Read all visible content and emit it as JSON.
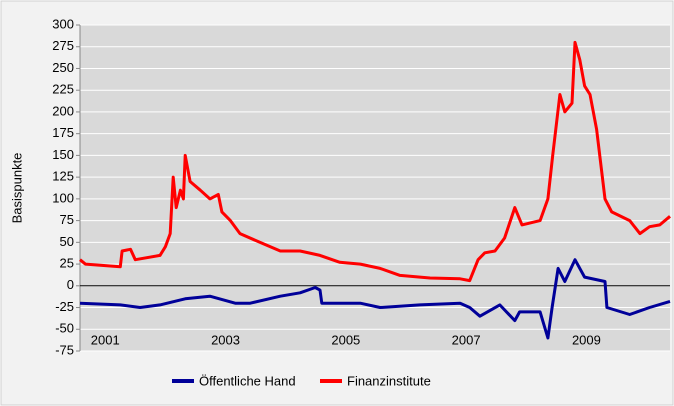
{
  "chart_data": {
    "type": "line",
    "y_label": "Basispunkte",
    "xlim": [
      2000.58,
      2010.39
    ],
    "xticks": [
      2001,
      2003,
      2005,
      2007,
      2009
    ],
    "ylim": [
      -75,
      300
    ],
    "yticks": [
      -75,
      -50,
      -25,
      0,
      25,
      50,
      75,
      100,
      125,
      150,
      175,
      200,
      225,
      250,
      275,
      300
    ],
    "grid": true,
    "legend": "bottom",
    "series": [
      {
        "name": "Öffentliche Hand",
        "color": "#000099",
        "x": [
          2000.58,
          2001.25,
          2001.58,
          2001.91,
          2002.33,
          2002.74,
          2003.16,
          2003.41,
          2003.91,
          2004.24,
          2004.49,
          2004.57,
          2004.6,
          2005.24,
          2005.57,
          2006.23,
          2006.9,
          2007.06,
          2007.23,
          2007.56,
          2007.81,
          2007.89,
          2008.23,
          2008.36,
          2008.43,
          2008.53,
          2008.64,
          2008.81,
          2008.97,
          2009.31,
          2009.34,
          2009.72,
          2010.05,
          2010.39
        ],
        "values": [
          -20,
          -22,
          -25,
          -22,
          -15,
          -12,
          -20,
          -20,
          -12,
          -8,
          -2,
          -5,
          -20,
          -20,
          -25,
          -22,
          -20,
          -25,
          -35,
          -22,
          -40,
          -30,
          -30,
          -60,
          -25,
          20,
          5,
          30,
          10,
          5,
          -25,
          -33,
          -25,
          -18
        ]
      },
      {
        "name": "Finanzinstitute",
        "color": "#ff0000",
        "x": [
          2000.58,
          2000.67,
          2001.25,
          2001.28,
          2001.42,
          2001.5,
          2001.91,
          2002.0,
          2002.08,
          2002.13,
          2002.18,
          2002.25,
          2002.3,
          2002.33,
          2002.41,
          2002.58,
          2002.74,
          2002.88,
          2002.94,
          2003.08,
          2003.24,
          2003.57,
          2003.91,
          2004.24,
          2004.57,
          2004.9,
          2005.24,
          2005.57,
          2005.9,
          2006.4,
          2006.9,
          2007.06,
          2007.2,
          2007.31,
          2007.48,
          2007.64,
          2007.81,
          2007.93,
          2008.23,
          2008.36,
          2008.44,
          2008.56,
          2008.64,
          2008.76,
          2008.81,
          2008.89,
          2008.97,
          2009.06,
          2009.17,
          2009.31,
          2009.42,
          2009.72,
          2009.89,
          2010.05,
          2010.22,
          2010.39
        ],
        "values": [
          30,
          25,
          22,
          40,
          42,
          30,
          35,
          45,
          60,
          125,
          90,
          110,
          100,
          150,
          120,
          110,
          100,
          105,
          85,
          75,
          60,
          50,
          40,
          40,
          35,
          27,
          25,
          20,
          12,
          9,
          8,
          6,
          30,
          38,
          40,
          55,
          90,
          70,
          75,
          100,
          150,
          220,
          200,
          210,
          280,
          260,
          230,
          220,
          180,
          100,
          85,
          75,
          60,
          68,
          70,
          80
        ]
      }
    ]
  }
}
